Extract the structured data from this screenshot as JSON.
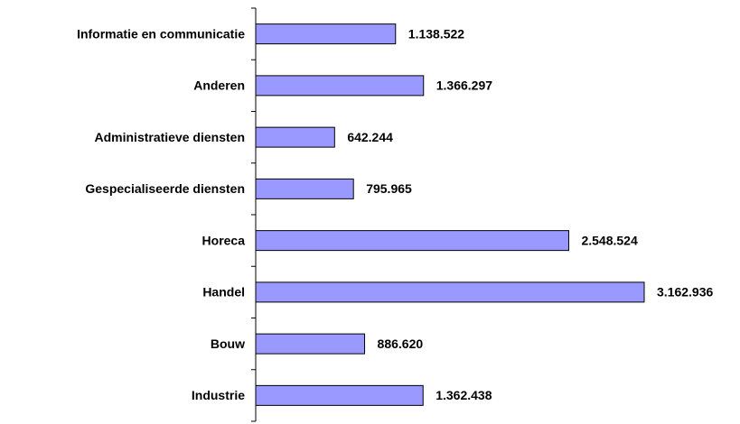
{
  "chart_data": {
    "type": "bar",
    "orientation": "horizontal",
    "categories": [
      "Informatie en communicatie",
      "Anderen",
      "Administratieve diensten",
      "Gespecialiseerde diensten",
      "Horeca",
      "Handel",
      "Bouw",
      "Industrie"
    ],
    "values": [
      1138522,
      1366297,
      642244,
      795965,
      2548524,
      3162936,
      886620,
      1362438
    ],
    "value_labels": [
      "1.138.522",
      "1.366.297",
      "642.244",
      "795.965",
      "2.548.524",
      "3.162.936",
      "886.620",
      "1.362.438"
    ],
    "color": "#9999ff"
  }
}
